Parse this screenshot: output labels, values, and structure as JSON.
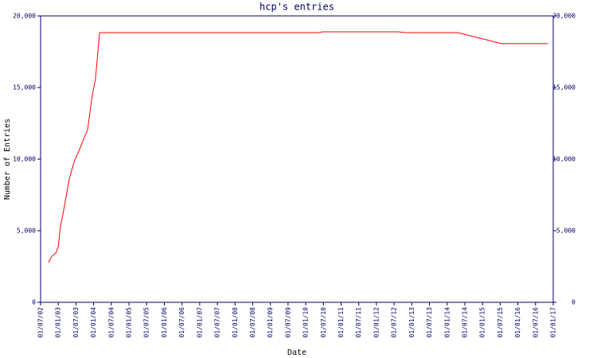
{
  "chart_data": {
    "type": "line",
    "title": "hcp's entries",
    "x_label": "Date",
    "y_label": "Number of Entries",
    "x": [
      2002.72,
      2002.82,
      2002.93,
      2003.0,
      2003.06,
      2003.15,
      2003.31,
      2003.45,
      2003.58,
      2003.83,
      2003.96,
      2004.05,
      2004.17,
      2010.36,
      2010.47,
      2012.61,
      2012.84,
      2014.3,
      2015.54,
      2016.85
    ],
    "series": [
      {
        "name": "entries",
        "color": "#ff0000",
        "values": [
          2780,
          3220,
          3440,
          3890,
          5280,
          6390,
          8610,
          9830,
          10560,
          12060,
          14440,
          15560,
          18830,
          18830,
          18890,
          18890,
          18830,
          18830,
          18060,
          18060
        ]
      }
    ],
    "xlim": [
      2002.5,
      2017.0
    ],
    "xticks": [
      {
        "value": 2002.5,
        "label": "01/07/02"
      },
      {
        "value": 2003.0,
        "label": "01/01/03"
      },
      {
        "value": 2003.5,
        "label": "01/07/03"
      },
      {
        "value": 2004.0,
        "label": "01/01/04"
      },
      {
        "value": 2004.5,
        "label": "01/07/04"
      },
      {
        "value": 2005.0,
        "label": "01/01/05"
      },
      {
        "value": 2005.5,
        "label": "01/07/05"
      },
      {
        "value": 2006.0,
        "label": "01/01/06"
      },
      {
        "value": 2006.5,
        "label": "01/07/06"
      },
      {
        "value": 2007.0,
        "label": "01/01/07"
      },
      {
        "value": 2007.5,
        "label": "01/07/07"
      },
      {
        "value": 2008.0,
        "label": "01/01/08"
      },
      {
        "value": 2008.5,
        "label": "01/07/08"
      },
      {
        "value": 2009.0,
        "label": "01/01/09"
      },
      {
        "value": 2009.5,
        "label": "01/07/09"
      },
      {
        "value": 2010.0,
        "label": "01/01/10"
      },
      {
        "value": 2010.5,
        "label": "01/07/10"
      },
      {
        "value": 2011.0,
        "label": "01/01/11"
      },
      {
        "value": 2011.5,
        "label": "01/07/11"
      },
      {
        "value": 2012.0,
        "label": "01/01/12"
      },
      {
        "value": 2012.5,
        "label": "01/07/12"
      },
      {
        "value": 2013.0,
        "label": "01/01/13"
      },
      {
        "value": 2013.5,
        "label": "01/07/13"
      },
      {
        "value": 2014.0,
        "label": "01/01/14"
      },
      {
        "value": 2014.5,
        "label": "01/07/14"
      },
      {
        "value": 2015.0,
        "label": "01/01/15"
      },
      {
        "value": 2015.5,
        "label": "01/07/15"
      },
      {
        "value": 2016.0,
        "label": "01/01/16"
      },
      {
        "value": 2016.5,
        "label": "01/07/16"
      },
      {
        "value": 2017.0,
        "label": "01/01/17"
      }
    ],
    "ylim": [
      0,
      20000
    ],
    "yticks": [
      0,
      {
        "value": 5000,
        "label": "5,000"
      },
      {
        "value": 10000,
        "label": "10,000"
      },
      {
        "value": 15000,
        "label": "15,000"
      },
      {
        "value": 20000,
        "label": "20,000"
      }
    ],
    "y2lim": [
      0,
      20000
    ],
    "y2ticks": [
      0,
      {
        "value": 5000,
        "label": "5,000"
      },
      {
        "value": 10000,
        "label": "10,000"
      },
      {
        "value": 15000,
        "label": "15,000"
      },
      {
        "value": 20000,
        "label": "20,000"
      }
    ]
  }
}
